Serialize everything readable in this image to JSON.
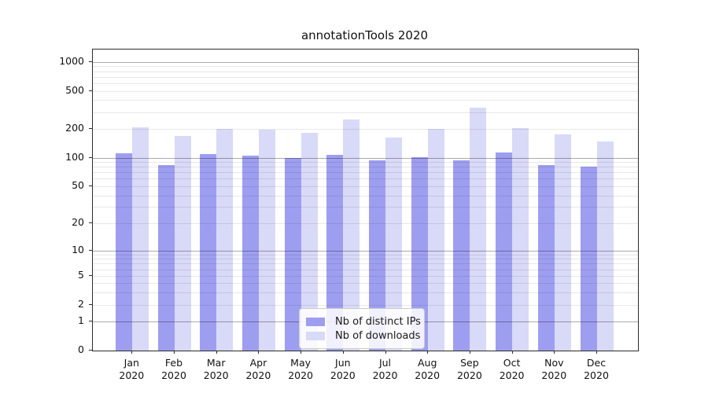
{
  "title": "annotationTools 2020",
  "chart_data": {
    "type": "bar",
    "title": "annotationTools 2020",
    "categories": [
      "Jan 2020",
      "Feb 2020",
      "Mar 2020",
      "Apr 2020",
      "May 2020",
      "Jun 2020",
      "Jul 2020",
      "Aug 2020",
      "Sep 2020",
      "Oct 2020",
      "Nov 2020",
      "Dec 2020"
    ],
    "series": [
      {
        "name": "Nb of distinct IPs",
        "color": "#9e9ef0",
        "values": [
          111,
          84,
          109,
          106,
          100,
          108,
          94,
          101,
          94,
          114,
          84,
          80
        ]
      },
      {
        "name": "Nb of downloads",
        "color": "#d9d9f8",
        "values": [
          207,
          168,
          199,
          195,
          184,
          253,
          163,
          199,
          336,
          206,
          177,
          147
        ]
      }
    ],
    "yscale": "log1p",
    "ylim": [
      0,
      1350
    ],
    "ytick_labels": [
      0,
      1,
      2,
      5,
      10,
      20,
      50,
      100,
      200,
      500,
      1000
    ],
    "grid": true,
    "grid_major_levels": [
      1,
      10,
      100,
      1000
    ],
    "legend_position": "lower center",
    "xlabel": "",
    "ylabel": ""
  }
}
